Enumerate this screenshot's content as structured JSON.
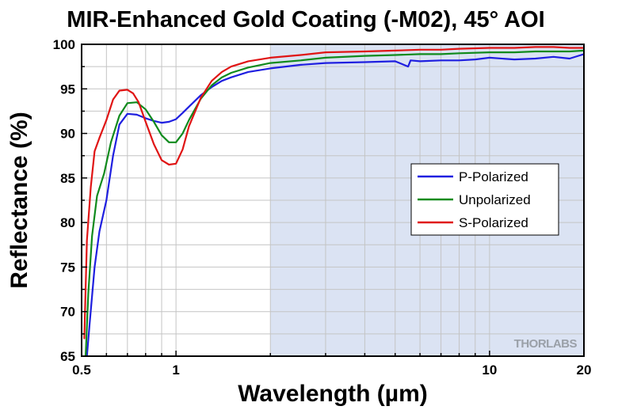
{
  "chart_data": {
    "type": "line",
    "title": "MIR-Enhanced Gold Coating (-M02), 45° AOI",
    "xlabel": "Wavelength (µm)",
    "ylabel": "Reflectance (%)",
    "x_scale": "log",
    "xlim": [
      0.5,
      20
    ],
    "ylim": [
      65,
      100
    ],
    "x_ticks": [
      {
        "value": 0.5,
        "label": "0.5"
      },
      {
        "value": 1,
        "label": "1"
      },
      {
        "value": 10,
        "label": "10"
      },
      {
        "value": 20,
        "label": "20"
      }
    ],
    "y_ticks": [
      {
        "value": 65,
        "label": "65"
      },
      {
        "value": 70,
        "label": "70"
      },
      {
        "value": 75,
        "label": "75"
      },
      {
        "value": 80,
        "label": "80"
      },
      {
        "value": 85,
        "label": "85"
      },
      {
        "value": 90,
        "label": "90"
      },
      {
        "value": 95,
        "label": "95"
      },
      {
        "value": 100,
        "label": "100"
      }
    ],
    "grid": true,
    "shaded_region": {
      "x_start": 2,
      "x_end": 20,
      "color": "#dbe3f3"
    },
    "legend_position": "right",
    "watermark": "THORLABS",
    "series": [
      {
        "name": "P-Polarized",
        "color": "#1f1fe0",
        "x": [
          0.52,
          0.53,
          0.55,
          0.57,
          0.6,
          0.63,
          0.66,
          0.7,
          0.75,
          0.8,
          0.85,
          0.9,
          0.95,
          1.0,
          1.05,
          1.1,
          1.2,
          1.3,
          1.4,
          1.5,
          1.7,
          2.0,
          2.5,
          3,
          4,
          5,
          5.5,
          5.6,
          6,
          7,
          8,
          9,
          10,
          12,
          14,
          16,
          18,
          20
        ],
        "y": [
          65,
          68.5,
          75,
          79,
          82.5,
          87.5,
          91,
          92.2,
          92.1,
          91.7,
          91.4,
          91.2,
          91.3,
          91.6,
          92.3,
          93.0,
          94.3,
          95.2,
          95.9,
          96.3,
          96.9,
          97.3,
          97.7,
          97.9,
          98.0,
          98.1,
          97.5,
          98.2,
          98.1,
          98.2,
          98.2,
          98.3,
          98.5,
          98.3,
          98.4,
          98.6,
          98.4,
          98.9
        ]
      },
      {
        "name": "Unpolarized",
        "color": "#0f8a1c",
        "x": [
          0.515,
          0.525,
          0.54,
          0.56,
          0.59,
          0.62,
          0.66,
          0.7,
          0.75,
          0.8,
          0.85,
          0.9,
          0.95,
          1.0,
          1.05,
          1.1,
          1.2,
          1.3,
          1.4,
          1.5,
          1.7,
          2.0,
          2.5,
          3,
          4,
          5,
          6,
          7,
          8,
          10,
          12,
          14,
          16,
          18,
          20
        ],
        "y": [
          65,
          72,
          78.5,
          83,
          85.5,
          89,
          92.0,
          93.4,
          93.5,
          92.7,
          91.3,
          89.8,
          89.0,
          89.0,
          90.0,
          91.5,
          93.9,
          95.4,
          96.3,
          96.8,
          97.4,
          97.9,
          98.2,
          98.5,
          98.7,
          98.8,
          98.9,
          98.9,
          99.0,
          99.1,
          99.1,
          99.2,
          99.2,
          99.2,
          99.3
        ]
      },
      {
        "name": "S-Polarized",
        "color": "#e01414",
        "x": [
          0.51,
          0.52,
          0.535,
          0.55,
          0.57,
          0.6,
          0.63,
          0.66,
          0.7,
          0.73,
          0.76,
          0.8,
          0.85,
          0.9,
          0.95,
          1.0,
          1.05,
          1.1,
          1.2,
          1.3,
          1.4,
          1.5,
          1.7,
          2.0,
          2.5,
          3,
          4,
          5,
          6,
          7,
          8,
          10,
          12,
          14,
          16,
          18,
          20
        ],
        "y": [
          67,
          78,
          84,
          88,
          89.5,
          91.5,
          93.8,
          94.8,
          94.9,
          94.5,
          93.5,
          91.3,
          88.8,
          87.0,
          86.5,
          86.6,
          88.2,
          90.8,
          94.0,
          95.9,
          96.9,
          97.5,
          98.1,
          98.5,
          98.8,
          99.1,
          99.2,
          99.3,
          99.4,
          99.4,
          99.5,
          99.6,
          99.6,
          99.7,
          99.7,
          99.6,
          99.6
        ]
      }
    ]
  }
}
